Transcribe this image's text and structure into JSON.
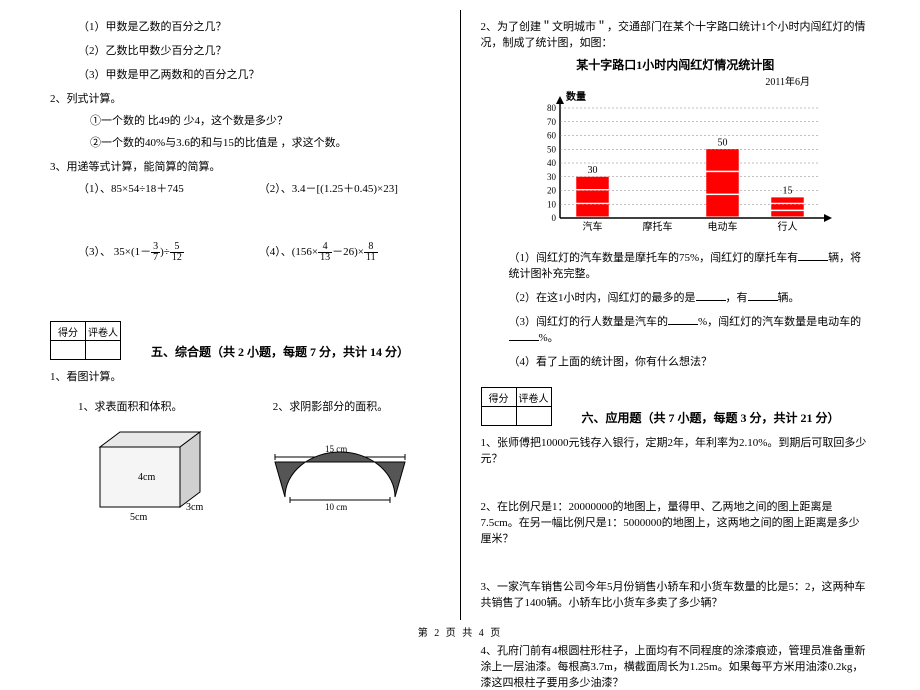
{
  "left": {
    "q1_1": "（1）甲数是乙数的百分之几？",
    "q1_2": "（2）乙数比甲数少百分之几？",
    "q1_3": "（3）甲数是甲乙两数和的百分之几？",
    "q2": "2、列式计算。",
    "q2_1": "①一个数的 比49的 少4，这个数是多少？",
    "q2_2": "②一个数的40%与3.6的和与15的比值是 ，求这个数。",
    "q3": "3、用递等式计算，能简算的简算。",
    "q3_1": "（1）、85×54÷18＋745",
    "q3_2": "（2）、3.4－[(1.25＋0.45)×23]",
    "q3_3a": "（3）、 35×(1－",
    "q3_3b": ")÷",
    "q3_4a": "（4）、(156×",
    "q3_4b": "－26)×",
    "sec5_header": "五、综合题（共 2 小题，每题 7 分，共计 14 分）",
    "sec5_1": "1、看图计算。",
    "sec5_1_1": "1、求表面积和体积。",
    "sec5_1_2": "2、求阴影部分的面积。",
    "score_h1": "得分",
    "score_h2": "评卷人",
    "cuboid_4cm": "4cm",
    "cuboid_3cm": "3cm",
    "cuboid_5cm": "5cm",
    "arch_15": "15 cm",
    "arch_10": "10 cm"
  },
  "right": {
    "q2": "2、为了创建＂文明城市＂，交通部门在某个十字路口统计1个小时内闯红灯的情况，制成了统计图，如图：",
    "chart_title": "某十字路口1小时内闯红灯情况统计图",
    "chart_date": "2011年6月",
    "chart_ylabel": "数量",
    "chart": {
      "categories": [
        "汽车",
        "摩托车",
        "电动车",
        "行人"
      ],
      "values": [
        30,
        null,
        50,
        15
      ],
      "bar_color": "#ff0000",
      "ymax": 80,
      "ytick_step": 10,
      "grid_color": "#808080",
      "axis_color": "#000000"
    },
    "q2_1a": "（1）闯红灯的汽车数量是摩托车的75%，闯红灯的摩托车有",
    "q2_1b": "辆，将统计图补充完整。",
    "q2_2a": "（2）在这1小时内，闯红灯的最多的是",
    "q2_2b": "，有",
    "q2_2c": "辆。",
    "q2_3a": "（3）闯红灯的行人数量是汽车的",
    "q2_3b": "%，闯红灯的汽车数量是电动车的",
    "q2_3c": "%。",
    "q2_4": "（4）看了上面的统计图，你有什么想法？",
    "sec6_header": "六、应用题（共 7 小题，每题 3 分，共计 21 分）",
    "sec6_1": "1、张师傅把10000元钱存入银行，定期2年，年利率为2.10%。到期后可取回多少元？",
    "sec6_2": "2、在比例尺是1：20000000的地图上，量得甲、乙两地之间的图上距离是7.5cm。在另一幅比例尺是1：5000000的地图上，这两地之间的图上距离是多少厘米？",
    "sec6_3": "3、一家汽车销售公司今年5月份销售小轿车和小货车数量的比是5：2，这两种车共销售了1400辆。小轿车比小货车多卖了多少辆？",
    "sec6_4": "4、孔府门前有4根圆柱形柱子，上面均有不同程度的涂漆痕迹，管理员准备重新涂上一层油漆。每根高3.7m，横截面周长为1.25m。如果每平方米用油漆0.2kg，漆这四根柱子要用多少油漆？",
    "score_h1": "得分",
    "score_h2": "评卷人"
  },
  "footer": "第 2 页 共 4 页"
}
